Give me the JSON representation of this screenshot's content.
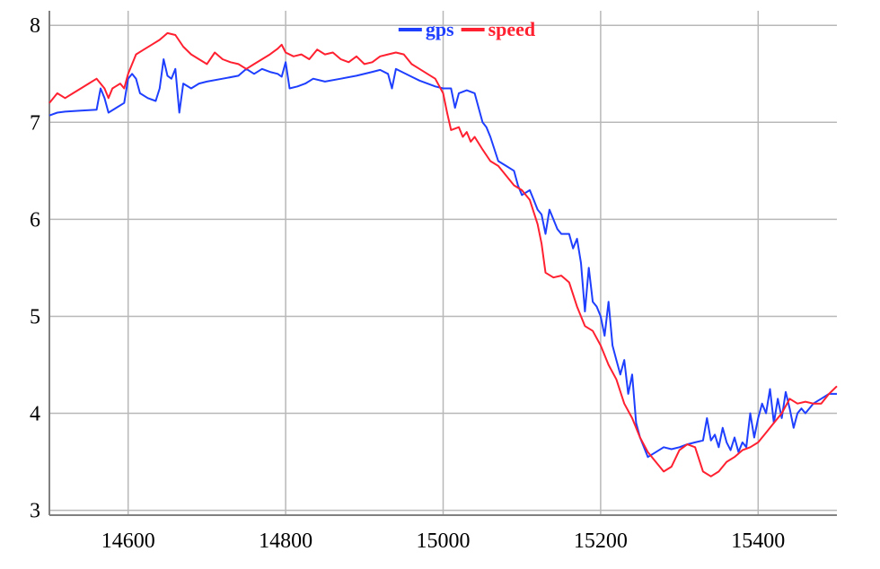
{
  "chart_data": {
    "type": "line",
    "title": "",
    "xlabel": "",
    "ylabel": "",
    "xlim": [
      14500,
      15500
    ],
    "ylim": [
      2.95,
      8.15
    ],
    "x_ticks": [
      14600,
      14800,
      15000,
      15200,
      15400
    ],
    "y_ticks": [
      3,
      4,
      5,
      6,
      7,
      8
    ],
    "grid": true,
    "legend": "top-center",
    "series": [
      {
        "name": "gps",
        "color": "#1f3fff",
        "points": [
          [
            14500,
            7.07
          ],
          [
            14510,
            7.1
          ],
          [
            14520,
            7.11
          ],
          [
            14540,
            7.12
          ],
          [
            14560,
            7.13
          ],
          [
            14565,
            7.35
          ],
          [
            14570,
            7.25
          ],
          [
            14575,
            7.1
          ],
          [
            14585,
            7.15
          ],
          [
            14595,
            7.2
          ],
          [
            14600,
            7.45
          ],
          [
            14605,
            7.5
          ],
          [
            14610,
            7.45
          ],
          [
            14615,
            7.3
          ],
          [
            14625,
            7.25
          ],
          [
            14635,
            7.22
          ],
          [
            14640,
            7.35
          ],
          [
            14645,
            7.65
          ],
          [
            14650,
            7.48
          ],
          [
            14655,
            7.45
          ],
          [
            14660,
            7.55
          ],
          [
            14665,
            7.1
          ],
          [
            14670,
            7.4
          ],
          [
            14680,
            7.35
          ],
          [
            14690,
            7.4
          ],
          [
            14700,
            7.42
          ],
          [
            14720,
            7.45
          ],
          [
            14740,
            7.48
          ],
          [
            14750,
            7.55
          ],
          [
            14760,
            7.5
          ],
          [
            14770,
            7.55
          ],
          [
            14780,
            7.52
          ],
          [
            14790,
            7.5
          ],
          [
            14795,
            7.47
          ],
          [
            14800,
            7.62
          ],
          [
            14805,
            7.35
          ],
          [
            14815,
            7.37
          ],
          [
            14825,
            7.4
          ],
          [
            14835,
            7.45
          ],
          [
            14850,
            7.42
          ],
          [
            14870,
            7.45
          ],
          [
            14890,
            7.48
          ],
          [
            14910,
            7.52
          ],
          [
            14920,
            7.54
          ],
          [
            14930,
            7.5
          ],
          [
            14935,
            7.35
          ],
          [
            14940,
            7.55
          ],
          [
            14945,
            7.53
          ],
          [
            14960,
            7.47
          ],
          [
            14970,
            7.43
          ],
          [
            14980,
            7.4
          ],
          [
            14990,
            7.37
          ],
          [
            15000,
            7.35
          ],
          [
            15010,
            7.35
          ],
          [
            15015,
            7.15
          ],
          [
            15020,
            7.3
          ],
          [
            15030,
            7.33
          ],
          [
            15040,
            7.3
          ],
          [
            15045,
            7.15
          ],
          [
            15050,
            7.0
          ],
          [
            15055,
            6.95
          ],
          [
            15060,
            6.85
          ],
          [
            15070,
            6.6
          ],
          [
            15080,
            6.55
          ],
          [
            15090,
            6.5
          ],
          [
            15095,
            6.35
          ],
          [
            15100,
            6.25
          ],
          [
            15110,
            6.3
          ],
          [
            15115,
            6.2
          ],
          [
            15120,
            6.1
          ],
          [
            15125,
            6.05
          ],
          [
            15130,
            5.85
          ],
          [
            15135,
            6.1
          ],
          [
            15140,
            6.0
          ],
          [
            15145,
            5.9
          ],
          [
            15150,
            5.85
          ],
          [
            15160,
            5.85
          ],
          [
            15165,
            5.7
          ],
          [
            15170,
            5.8
          ],
          [
            15175,
            5.55
          ],
          [
            15180,
            5.05
          ],
          [
            15185,
            5.5
          ],
          [
            15190,
            5.15
          ],
          [
            15195,
            5.1
          ],
          [
            15200,
            5.0
          ],
          [
            15205,
            4.8
          ],
          [
            15210,
            5.15
          ],
          [
            15215,
            4.7
          ],
          [
            15220,
            4.55
          ],
          [
            15225,
            4.4
          ],
          [
            15230,
            4.55
          ],
          [
            15235,
            4.2
          ],
          [
            15240,
            4.4
          ],
          [
            15245,
            3.9
          ],
          [
            15250,
            3.75
          ],
          [
            15260,
            3.55
          ],
          [
            15270,
            3.6
          ],
          [
            15280,
            3.65
          ],
          [
            15290,
            3.63
          ],
          [
            15300,
            3.65
          ],
          [
            15310,
            3.68
          ],
          [
            15320,
            3.7
          ],
          [
            15330,
            3.72
          ],
          [
            15335,
            3.95
          ],
          [
            15340,
            3.72
          ],
          [
            15345,
            3.78
          ],
          [
            15350,
            3.65
          ],
          [
            15355,
            3.85
          ],
          [
            15360,
            3.7
          ],
          [
            15365,
            3.62
          ],
          [
            15370,
            3.75
          ],
          [
            15375,
            3.6
          ],
          [
            15380,
            3.7
          ],
          [
            15385,
            3.65
          ],
          [
            15390,
            4.0
          ],
          [
            15395,
            3.75
          ],
          [
            15400,
            3.95
          ],
          [
            15405,
            4.1
          ],
          [
            15410,
            4.0
          ],
          [
            15415,
            4.25
          ],
          [
            15420,
            3.9
          ],
          [
            15425,
            4.15
          ],
          [
            15430,
            3.95
          ],
          [
            15435,
            4.22
          ],
          [
            15440,
            4.05
          ],
          [
            15445,
            3.85
          ],
          [
            15450,
            4.0
          ],
          [
            15455,
            4.05
          ],
          [
            15460,
            4.0
          ],
          [
            15470,
            4.1
          ],
          [
            15480,
            4.15
          ],
          [
            15490,
            4.2
          ],
          [
            15500,
            4.2
          ]
        ]
      },
      {
        "name": "speed",
        "color": "#ff2030",
        "points": [
          [
            14500,
            7.2
          ],
          [
            14510,
            7.3
          ],
          [
            14520,
            7.25
          ],
          [
            14530,
            7.3
          ],
          [
            14540,
            7.35
          ],
          [
            14550,
            7.4
          ],
          [
            14560,
            7.45
          ],
          [
            14570,
            7.35
          ],
          [
            14575,
            7.25
          ],
          [
            14580,
            7.35
          ],
          [
            14590,
            7.4
          ],
          [
            14595,
            7.35
          ],
          [
            14600,
            7.5
          ],
          [
            14610,
            7.7
          ],
          [
            14620,
            7.75
          ],
          [
            14630,
            7.8
          ],
          [
            14640,
            7.85
          ],
          [
            14650,
            7.92
          ],
          [
            14660,
            7.9
          ],
          [
            14670,
            7.78
          ],
          [
            14680,
            7.7
          ],
          [
            14690,
            7.65
          ],
          [
            14700,
            7.6
          ],
          [
            14710,
            7.72
          ],
          [
            14720,
            7.65
          ],
          [
            14730,
            7.62
          ],
          [
            14740,
            7.6
          ],
          [
            14750,
            7.55
          ],
          [
            14760,
            7.6
          ],
          [
            14770,
            7.65
          ],
          [
            14780,
            7.7
          ],
          [
            14790,
            7.76
          ],
          [
            14795,
            7.8
          ],
          [
            14800,
            7.72
          ],
          [
            14810,
            7.68
          ],
          [
            14820,
            7.7
          ],
          [
            14830,
            7.65
          ],
          [
            14840,
            7.75
          ],
          [
            14850,
            7.7
          ],
          [
            14860,
            7.72
          ],
          [
            14870,
            7.65
          ],
          [
            14880,
            7.62
          ],
          [
            14890,
            7.68
          ],
          [
            14900,
            7.6
          ],
          [
            14910,
            7.62
          ],
          [
            14920,
            7.68
          ],
          [
            14930,
            7.7
          ],
          [
            14940,
            7.72
          ],
          [
            14950,
            7.7
          ],
          [
            14960,
            7.6
          ],
          [
            14970,
            7.55
          ],
          [
            14980,
            7.5
          ],
          [
            14990,
            7.45
          ],
          [
            15000,
            7.3
          ],
          [
            15005,
            7.1
          ],
          [
            15010,
            6.92
          ],
          [
            15020,
            6.95
          ],
          [
            15025,
            6.85
          ],
          [
            15030,
            6.9
          ],
          [
            15035,
            6.8
          ],
          [
            15040,
            6.85
          ],
          [
            15050,
            6.72
          ],
          [
            15060,
            6.6
          ],
          [
            15070,
            6.55
          ],
          [
            15080,
            6.45
          ],
          [
            15090,
            6.35
          ],
          [
            15100,
            6.3
          ],
          [
            15110,
            6.2
          ],
          [
            15120,
            5.95
          ],
          [
            15125,
            5.75
          ],
          [
            15130,
            5.45
          ],
          [
            15140,
            5.4
          ],
          [
            15150,
            5.42
          ],
          [
            15160,
            5.35
          ],
          [
            15170,
            5.1
          ],
          [
            15180,
            4.9
          ],
          [
            15190,
            4.85
          ],
          [
            15200,
            4.7
          ],
          [
            15210,
            4.5
          ],
          [
            15220,
            4.35
          ],
          [
            15230,
            4.1
          ],
          [
            15240,
            3.95
          ],
          [
            15250,
            3.75
          ],
          [
            15260,
            3.6
          ],
          [
            15270,
            3.5
          ],
          [
            15280,
            3.4
          ],
          [
            15290,
            3.45
          ],
          [
            15300,
            3.62
          ],
          [
            15310,
            3.68
          ],
          [
            15320,
            3.65
          ],
          [
            15330,
            3.4
          ],
          [
            15340,
            3.35
          ],
          [
            15350,
            3.4
          ],
          [
            15360,
            3.5
          ],
          [
            15370,
            3.55
          ],
          [
            15380,
            3.62
          ],
          [
            15390,
            3.65
          ],
          [
            15400,
            3.7
          ],
          [
            15410,
            3.8
          ],
          [
            15420,
            3.9
          ],
          [
            15430,
            4.0
          ],
          [
            15440,
            4.15
          ],
          [
            15450,
            4.1
          ],
          [
            15460,
            4.12
          ],
          [
            15470,
            4.1
          ],
          [
            15480,
            4.1
          ],
          [
            15490,
            4.2
          ],
          [
            15500,
            4.28
          ]
        ]
      }
    ]
  }
}
